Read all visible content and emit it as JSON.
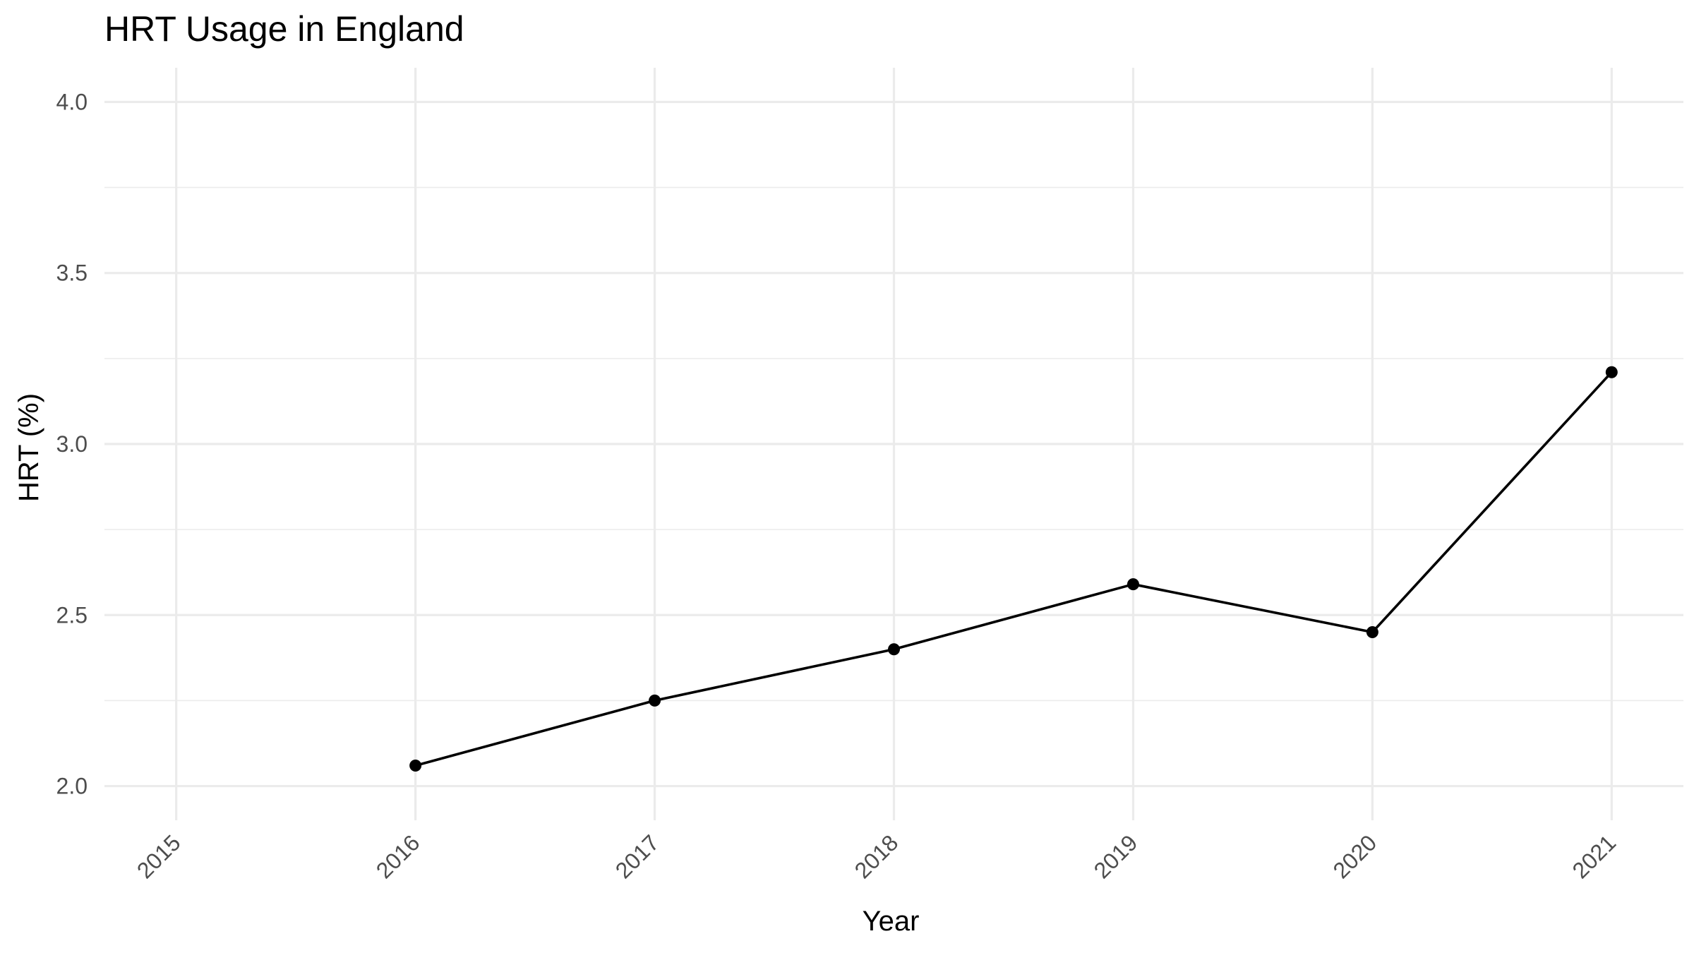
{
  "chart_data": {
    "type": "line",
    "title": "HRT Usage in England",
    "xlabel": "Year",
    "ylabel": "HRT (%)",
    "x_ticks": [
      "2015",
      "2016",
      "2017",
      "2018",
      "2019",
      "2020",
      "2021"
    ],
    "y_ticks": [
      "2.0",
      "2.5",
      "3.0",
      "3.5",
      "4.0"
    ],
    "xlim": [
      2014.7,
      2021.3
    ],
    "ylim": [
      1.9,
      4.1
    ],
    "grid": true,
    "legend": "none",
    "series": [
      {
        "x": [
          2016,
          2017,
          2018,
          2019,
          2020,
          2021
        ],
        "values": [
          2.06,
          2.25,
          2.4,
          2.59,
          2.45,
          3.21
        ]
      }
    ],
    "colors": {
      "line": "#000000",
      "points": "#000000",
      "grid": "#ebebeb",
      "tick_text": "#4d4d4d"
    }
  }
}
